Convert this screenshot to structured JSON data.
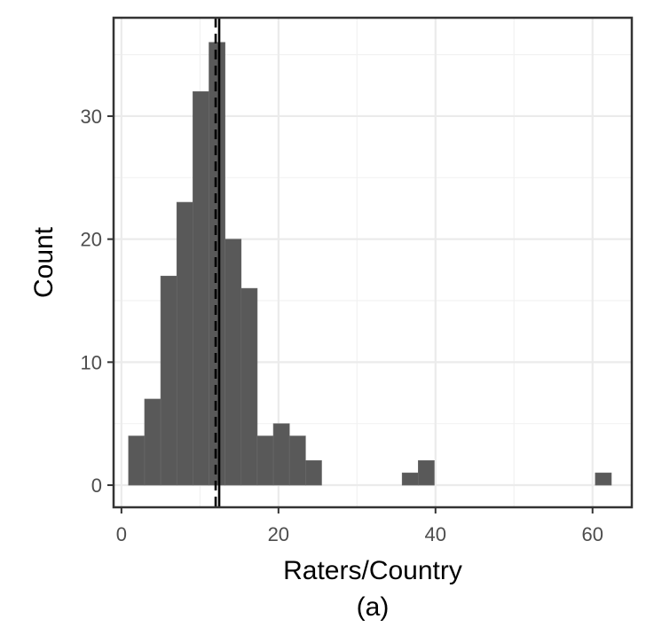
{
  "chart_data": {
    "type": "bar",
    "subtype": "histogram",
    "xlabel": "Raters/Country",
    "caption": "(a)",
    "ylabel": "Count",
    "xlim": [
      -1,
      65
    ],
    "ylim": [
      -1.8,
      38
    ],
    "x_ticks": [
      0,
      20,
      40,
      60
    ],
    "y_ticks": [
      0,
      10,
      20,
      30
    ],
    "bin_width": 2.05,
    "bins": [
      {
        "x0": 0.9,
        "count": 4
      },
      {
        "x0": 2.95,
        "count": 7
      },
      {
        "x0": 5.0,
        "count": 17
      },
      {
        "x0": 7.05,
        "count": 23
      },
      {
        "x0": 9.1,
        "count": 32
      },
      {
        "x0": 11.15,
        "count": 36
      },
      {
        "x0": 13.2,
        "count": 20
      },
      {
        "x0": 15.25,
        "count": 16
      },
      {
        "x0": 17.3,
        "count": 4
      },
      {
        "x0": 19.35,
        "count": 5
      },
      {
        "x0": 21.4,
        "count": 4
      },
      {
        "x0": 23.45,
        "count": 2
      },
      {
        "x0": 35.75,
        "count": 1
      },
      {
        "x0": 37.8,
        "count": 2
      },
      {
        "x0": 60.35,
        "count": 1
      }
    ],
    "reference_lines": [
      {
        "x": 12.0,
        "style": "dashed"
      },
      {
        "x": 12.45,
        "style": "solid"
      }
    ],
    "grid": true,
    "legend": "none",
    "bar_color": "#595959",
    "bar_edge_color": "#6b6b6b"
  }
}
